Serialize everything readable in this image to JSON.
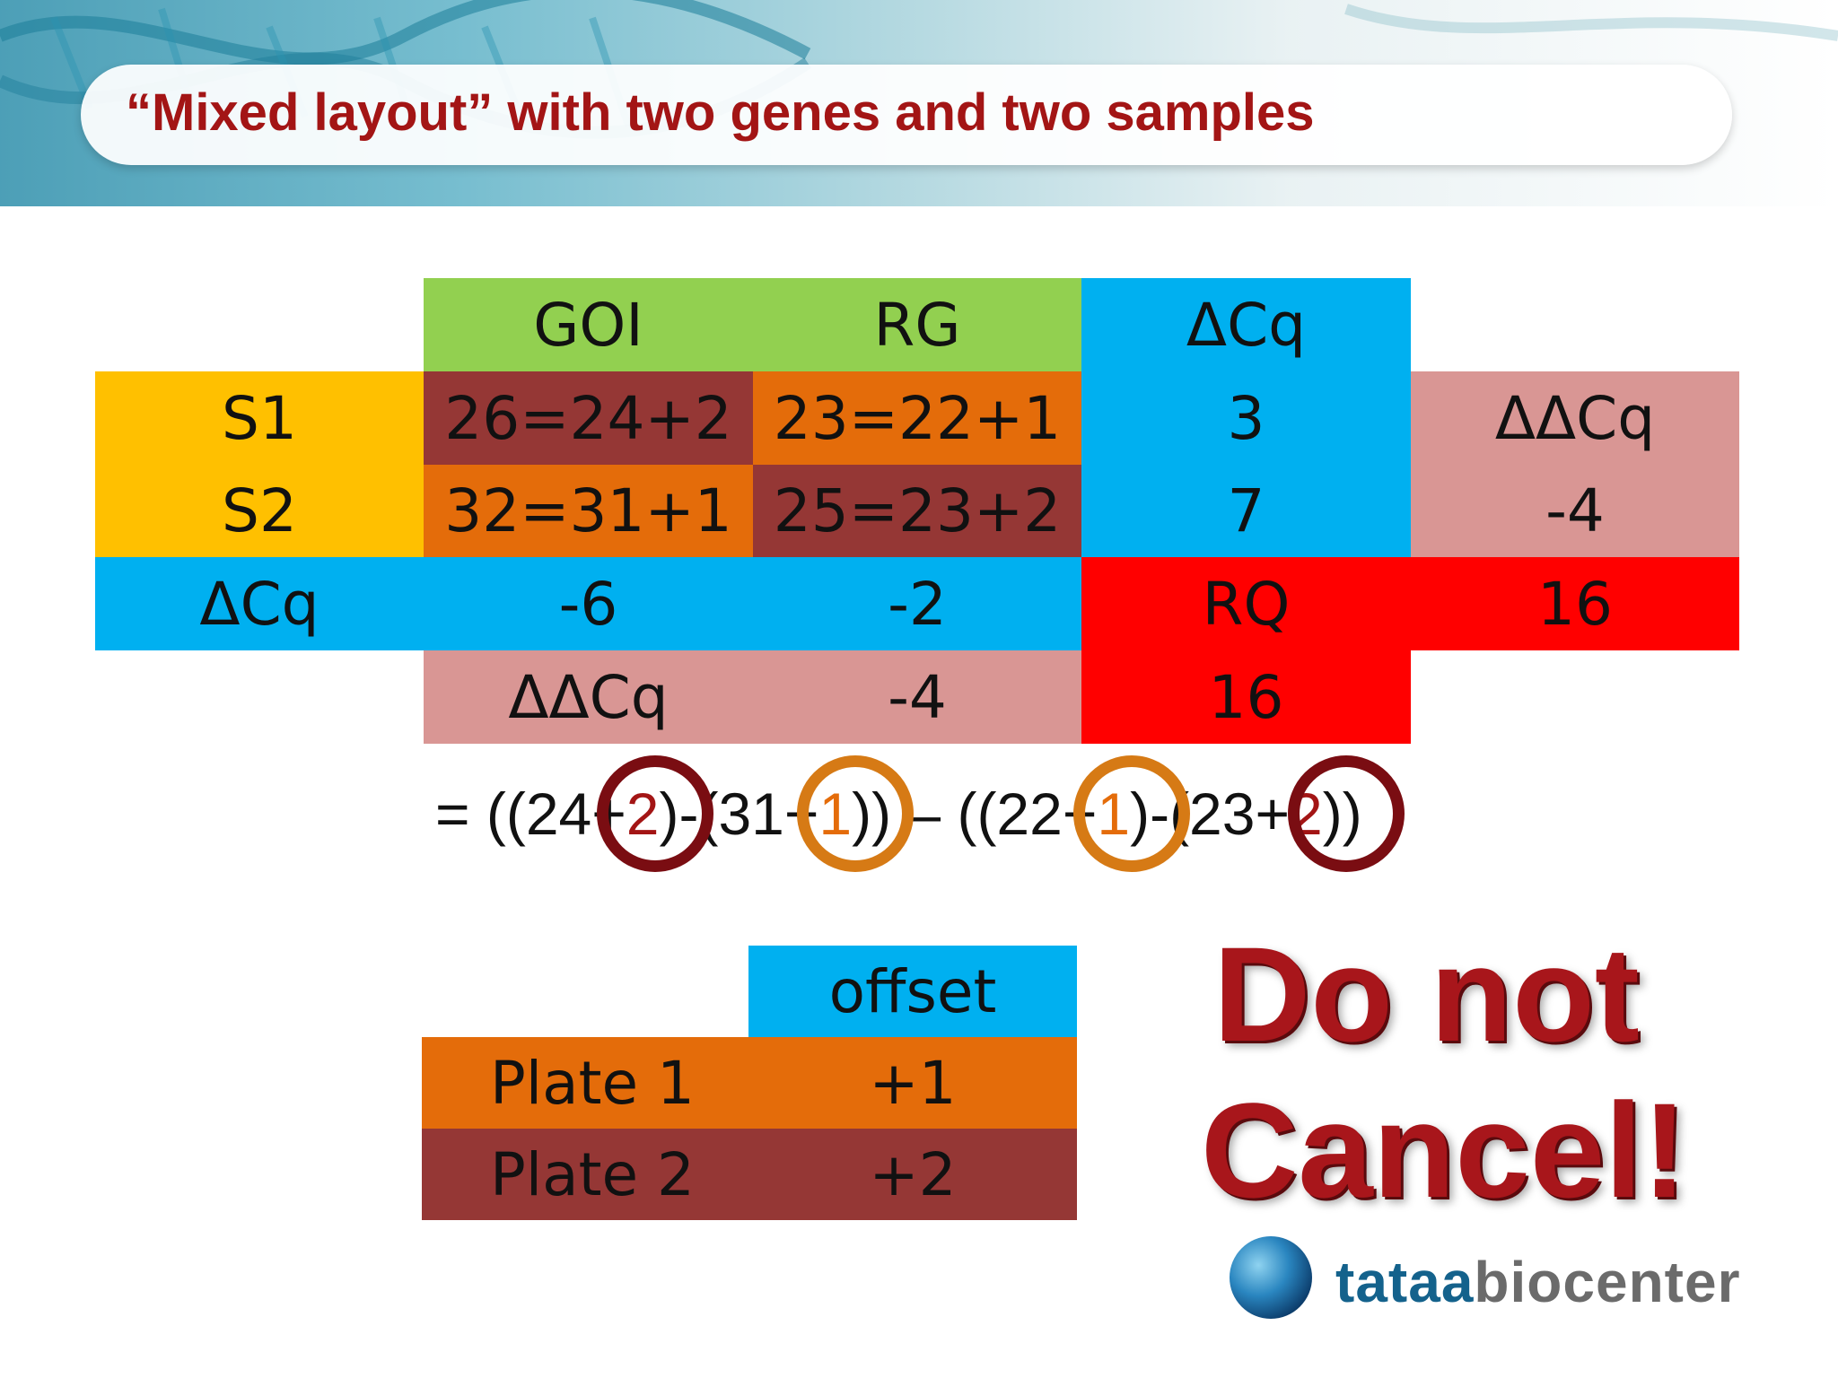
{
  "slide": {
    "title": "“Mixed layout” with two genes and two samples"
  },
  "main_table": {
    "header_goi": "GOI",
    "header_rg": "RG",
    "header_dcq": "ΔCq",
    "row_s1": {
      "label": "S1",
      "goi": "26=24+2",
      "rg": "23=22+1",
      "dcq": "3"
    },
    "row_s2": {
      "label": "S2",
      "goi": "32=31+1",
      "rg": "25=23+2",
      "dcq": "7"
    },
    "ddcq_side_label": "ΔΔCq",
    "ddcq_side_value": "-4",
    "row_dcq": {
      "label": "ΔCq",
      "goi": "-6",
      "rg": "-2"
    },
    "rq_label": "RQ",
    "rq_value_side": "16",
    "row_ddcq": {
      "label": "ΔΔCq",
      "value": "-4"
    },
    "rq_value_bottom": "16"
  },
  "formula": {
    "p1": "= ((24",
    "p2": "+",
    "p3": "2",
    "p4": ")-(31",
    "p5": "+",
    "p6": "1",
    "p7": ")) – ((22",
    "p8": "+",
    "p9": "1",
    "p10": ")-(23",
    "p11": "+",
    "p12": "2",
    "p13": "))"
  },
  "offset_table": {
    "header": "offset",
    "rows": [
      {
        "label": "Plate 1",
        "value": "+1"
      },
      {
        "label": "Plate 2",
        "value": "+2"
      }
    ]
  },
  "warning": {
    "line1": "Do not",
    "line2": "Cancel!"
  },
  "logo": {
    "part1": "tataa",
    "part2": "biocenter"
  },
  "colors": {
    "title": "#a31515",
    "green": "#92d050",
    "blue": "#00b0f0",
    "yellow": "#ffc000",
    "maroon": "#953735",
    "orange": "#e46c0a",
    "pink": "#d99694",
    "red": "#ff0000"
  }
}
